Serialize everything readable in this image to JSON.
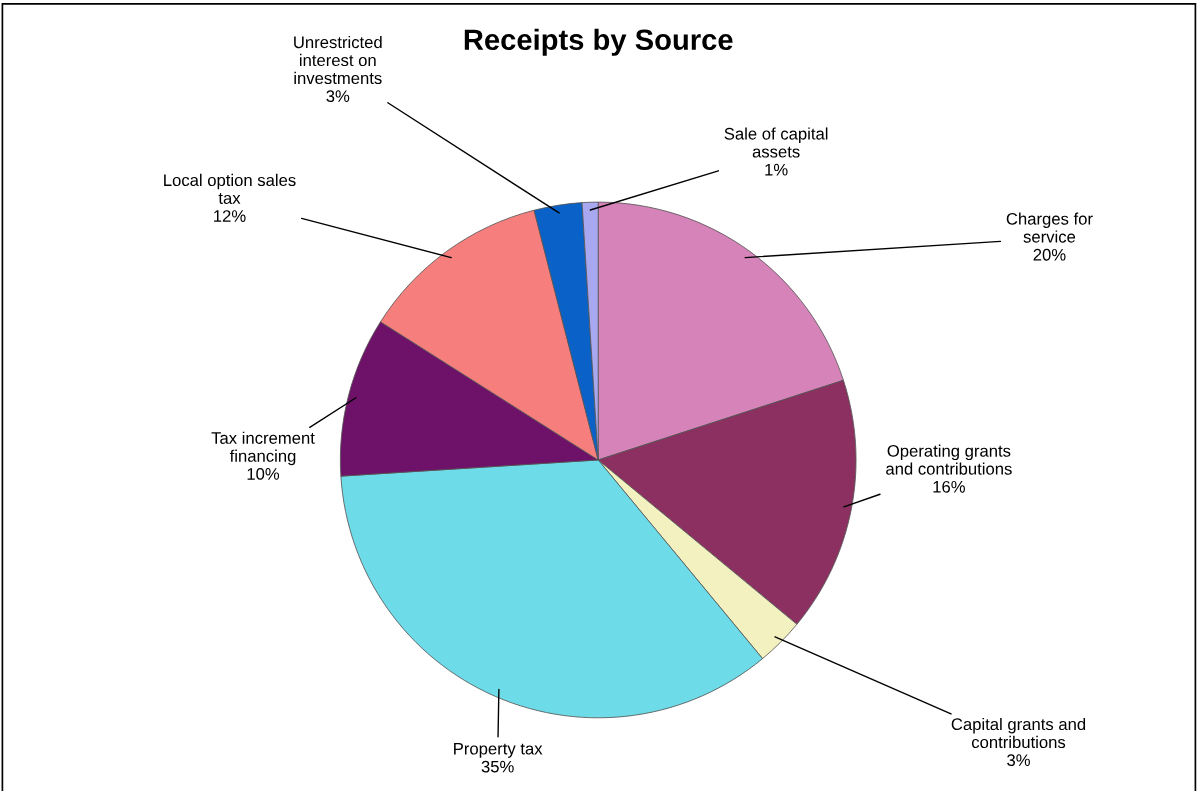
{
  "chart_data": {
    "type": "pie",
    "title": "Receipts by Source",
    "categories": [
      "Charges for service",
      "Operating grants and contributions",
      "Capital grants and contributions",
      "Property tax",
      "Tax increment financing",
      "Local option sales tax",
      "Unrestricted interest on investments",
      "Sale of capital assets"
    ],
    "values": [
      20,
      16,
      3,
      35,
      10,
      12,
      3,
      1
    ],
    "colors": [
      "#d683b9",
      "#8b3060",
      "#f3f1c0",
      "#6ddbe8",
      "#6e1168",
      "#f67f7e",
      "#0a62c8",
      "#a8a8f0"
    ],
    "value_labels": [
      "20%",
      "16%",
      "3%",
      "35%",
      "10%",
      "12%",
      "3%",
      "1%"
    ]
  }
}
